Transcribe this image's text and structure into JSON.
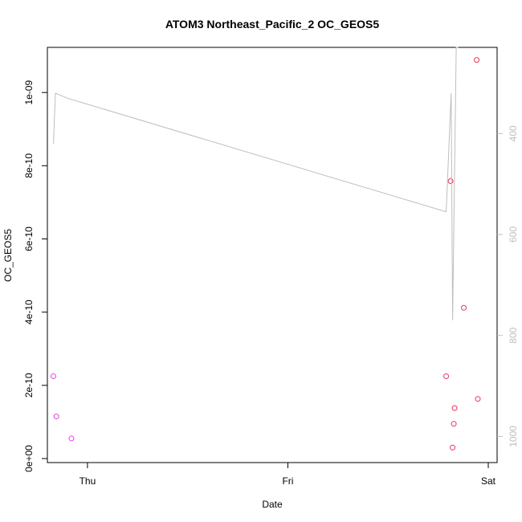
{
  "chart_data": {
    "type": "scatter",
    "title": "ATOM3 Northeast_Pacific_2 OC_GEOS5",
    "xlabel": "Date",
    "ylabel": "OC_GEOS5",
    "x_tick_labels": [
      "Thu",
      "Fri",
      "Sat"
    ],
    "x_tick_values": [
      1.0,
      2.0,
      3.0
    ],
    "xlim": [
      0.8,
      3.0
    ],
    "y_tick_labels": [
      "0e+00",
      "2e-10",
      "4e-10",
      "6e-10",
      "8e-10",
      "1e-09"
    ],
    "y_tick_values": [
      0,
      2e-10,
      4e-10,
      6e-10,
      8e-10,
      1e-09
    ],
    "ylim": [
      0,
      1.12e-09
    ],
    "y2_tick_labels": [
      "400",
      "600",
      "800",
      "1000"
    ],
    "y2_tick_values": [
      400,
      600,
      800,
      1000
    ],
    "y2_range_bottom_top": [
      1020,
      220
    ],
    "y2_reversed": true,
    "grid": false,
    "series": [
      {
        "kind": "points",
        "color": "#e040e0",
        "x": [
          0.83,
          0.845,
          0.92
        ],
        "y": [
          2.25e-10,
          1.15e-10,
          5.5e-11
        ]
      },
      {
        "kind": "points",
        "color": "#e8325a",
        "x": [
          2.79,
          2.812,
          2.822,
          2.828,
          2.832,
          2.878,
          2.942,
          2.948
        ],
        "y": [
          2.25e-10,
          7.58e-10,
          3e-11,
          9.5e-11,
          1.38e-10,
          4.12e-10,
          1.089e-09,
          1.63e-10
        ]
      },
      {
        "kind": "line",
        "axis": "y2",
        "color": "#bebebe",
        "x": [
          0.83,
          0.84,
          0.9,
          2.79,
          2.815,
          2.822,
          2.84,
          2.85
        ],
        "y": [
          420,
          320,
          330,
          555,
          320,
          770,
          220,
          220
        ]
      }
    ]
  }
}
